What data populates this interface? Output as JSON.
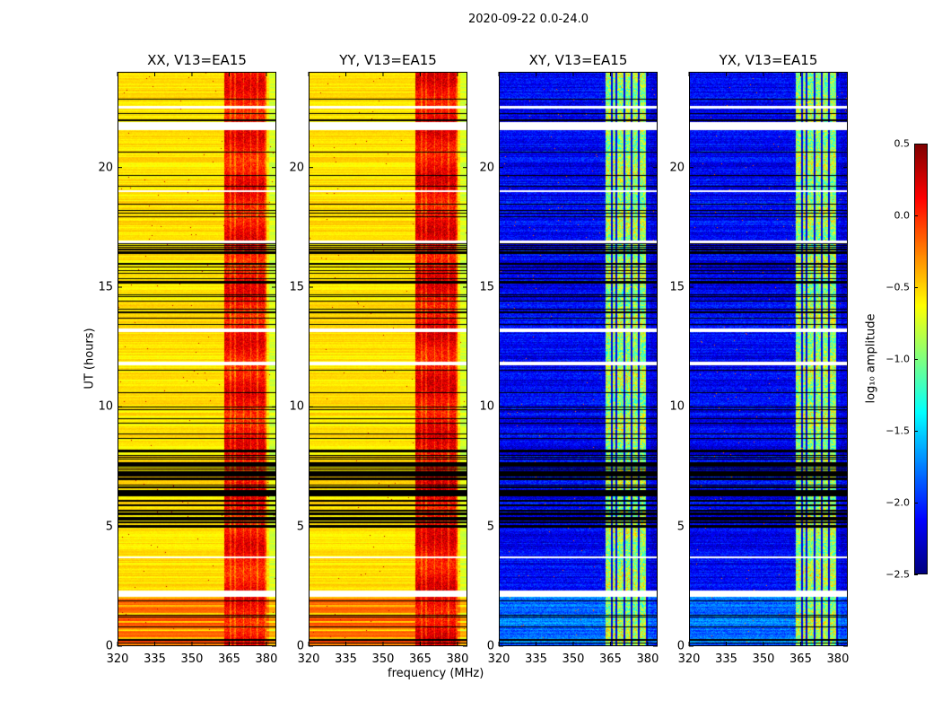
{
  "chart_data": {
    "type": "heatmap",
    "title": "2020-09-22 0.0-24.0",
    "xlabel": "frequency (MHz)",
    "ylabel": "UT (hours)",
    "xlim": [
      320,
      384
    ],
    "ylim": [
      0,
      24
    ],
    "xticks": [
      "320",
      "335",
      "350",
      "365",
      "380"
    ],
    "yticks": [
      "0",
      "5",
      "10",
      "15",
      "20"
    ],
    "colormap": "jet",
    "panels": [
      {
        "title": "XX, V13=EA15",
        "kind": "parallel",
        "background_log_amp": -0.55,
        "band_log_amp": 0.1,
        "early_log_amp": -0.15
      },
      {
        "title": "YY, V13=EA15",
        "kind": "parallel",
        "background_log_amp": -0.55,
        "band_log_amp": 0.15,
        "early_log_amp": -0.15
      },
      {
        "title": "XY, V13=EA15",
        "kind": "cross",
        "background_log_amp": -2.15,
        "band_log_amp": -0.9,
        "early_log_amp": -1.8
      },
      {
        "title": "YX, V13=EA15",
        "kind": "cross",
        "background_log_amp": -2.15,
        "band_log_amp": -0.9,
        "early_log_amp": -1.8
      }
    ],
    "rfi_band_mhz": [
      363,
      380
    ],
    "early_period_hours": [
      0,
      2.1
    ],
    "flagged_hours": [
      [
        2.1,
        2.35
      ],
      [
        3.7,
        3.78
      ],
      [
        11.75,
        11.9
      ],
      [
        13.15,
        13.3
      ],
      [
        16.85,
        16.95
      ],
      [
        19.0,
        19.08
      ],
      [
        21.6,
        21.9
      ],
      [
        22.5,
        22.58
      ]
    ],
    "colorbar": {
      "label": "log₁₀ amplitude",
      "range": [
        -2.5,
        0.5
      ],
      "ticks": [
        "0.5",
        "0.0",
        "−0.5",
        "−1.0",
        "−1.5",
        "−2.0",
        "−2.5"
      ]
    }
  }
}
